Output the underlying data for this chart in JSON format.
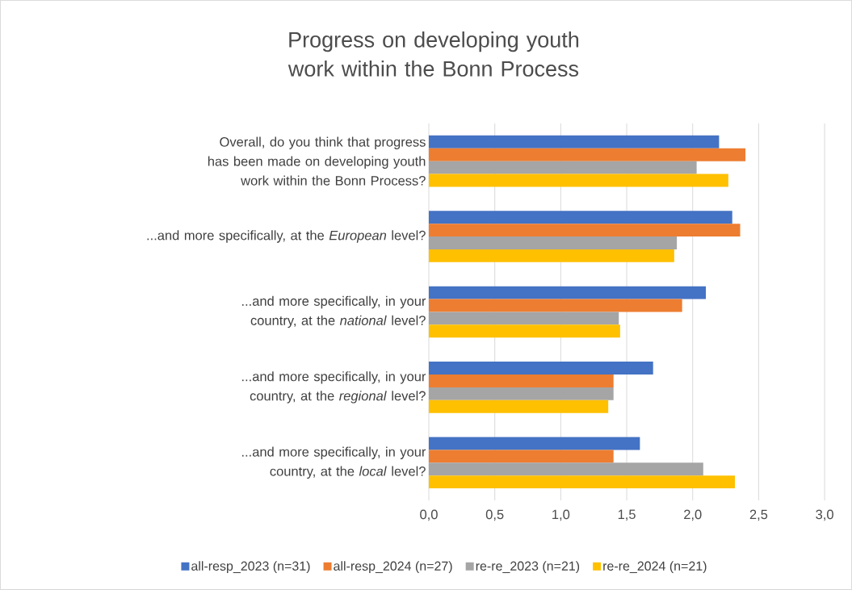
{
  "chart_data": {
    "type": "bar",
    "orientation": "horizontal",
    "title": "Progress on developing youth work within the Bonn Process",
    "categories": [
      "Overall, do you think that progress has been made on developing  youth work within the Bonn Process?",
      "...and more specifically, at the *European* level?",
      "...and more specifically, in your country, at the *national* level?",
      "...and more specifically, in your country, at the *regional* level?",
      "...and more specifically, in your country, at the *local* level?"
    ],
    "series": [
      {
        "name": "all-resp_2023 (n=31)",
        "color": "#4472c4",
        "values": [
          2.2,
          2.3,
          2.1,
          1.7,
          1.6
        ]
      },
      {
        "name": "all-resp_2024 (n=27)",
        "color": "#ed7d31",
        "values": [
          2.4,
          2.36,
          1.92,
          1.4,
          1.4
        ]
      },
      {
        "name": "re-re_2023 (n=21)",
        "color": "#a5a5a5",
        "values": [
          2.03,
          1.88,
          1.44,
          1.4,
          2.08
        ]
      },
      {
        "name": "re-re_2024 (n=21)",
        "color": "#ffc000",
        "values": [
          2.27,
          1.86,
          1.45,
          1.36,
          2.32
        ]
      }
    ],
    "xlim": [
      0,
      3
    ],
    "xticks": [
      {
        "value": 0,
        "label": "0,0"
      },
      {
        "value": 0.5,
        "label": "0,5"
      },
      {
        "value": 1,
        "label": "1,0"
      },
      {
        "value": 1.5,
        "label": "1,5"
      },
      {
        "value": 2,
        "label": "2,0"
      },
      {
        "value": 2.5,
        "label": "2,5"
      },
      {
        "value": 3,
        "label": "3,0"
      }
    ],
    "grid": "x",
    "legend": "bottom"
  }
}
